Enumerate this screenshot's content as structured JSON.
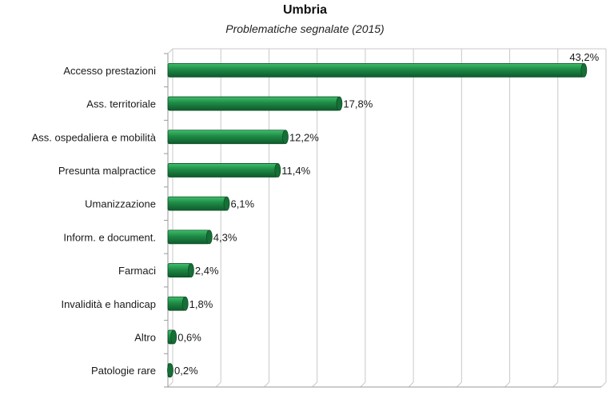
{
  "chart_data": {
    "type": "bar",
    "orientation": "horizontal",
    "title": "Umbria",
    "subtitle": "Problematiche segnalate (2015)",
    "categories": [
      "Accesso  prestazioni",
      "Ass. territoriale",
      "Ass. ospedaliera e mobilità",
      "Presunta malpractice",
      "Umanizzazione",
      "Inform. e document.",
      "Farmaci",
      "Invalidità e handicap",
      "Altro",
      "Patologie rare"
    ],
    "values": [
      43.2,
      17.8,
      12.2,
      11.4,
      6.1,
      4.3,
      2.4,
      1.8,
      0.6,
      0.2
    ],
    "data_labels": [
      "43,2%",
      "17,8%",
      "12,2%",
      "11,4%",
      "6,1%",
      "4,3%",
      "2,4%",
      "1,8%",
      "0,6%",
      "0,2%"
    ],
    "xlim": [
      0,
      45
    ],
    "grid": true,
    "legend": "none",
    "bar_color": "#1e8a46"
  }
}
